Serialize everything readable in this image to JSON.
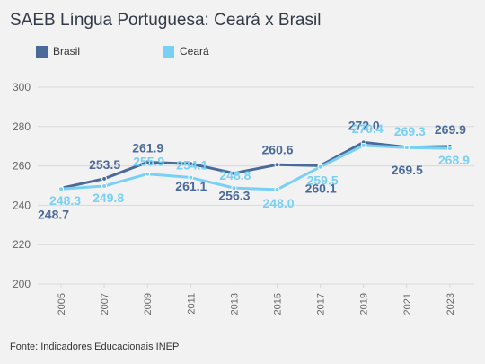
{
  "title": "SAEB Língua Portuguesa: Ceará x Brasil",
  "source": "Fonte: Indicadores Educacionais INEP",
  "colors": {
    "brasil": "#4a6a9a",
    "ceara": "#78d0f5",
    "grid": "#d9d9d9",
    "axis_text": "#666666"
  },
  "chart_data": {
    "type": "line",
    "title": "SAEB Língua Portuguesa: Ceará x Brasil",
    "xlabel": "",
    "ylabel": "",
    "categories": [
      "2005",
      "2007",
      "2009",
      "2011",
      "2013",
      "2015",
      "2017",
      "2019",
      "2021",
      "2023"
    ],
    "ylim": [
      200,
      300
    ],
    "yticks": [
      "300",
      "280",
      "260",
      "240",
      "220",
      "200"
    ],
    "grid": true,
    "legend_position": "top-left",
    "series": [
      {
        "name": "Brasil",
        "values": [
          248.7,
          253.5,
          261.9,
          261.1,
          256.3,
          260.6,
          260.1,
          272.0,
          269.5,
          269.9
        ]
      },
      {
        "name": "Ceará",
        "values": [
          248.3,
          249.8,
          255.9,
          254.1,
          248.8,
          248.0,
          259.5,
          270.4,
          269.3,
          268.9
        ]
      }
    ],
    "data_labels": {
      "Brasil": [
        "248.7",
        "253.5",
        "261.9",
        "261.1",
        "256.3",
        "260.6",
        "260.1",
        "272.0",
        "269.5",
        "269.9"
      ],
      "Ceará": [
        "248.3",
        "249.8",
        "255.9",
        "254.1",
        "248.8",
        "248.0",
        "259.5",
        "270.4",
        "269.3",
        "268.9"
      ]
    }
  }
}
